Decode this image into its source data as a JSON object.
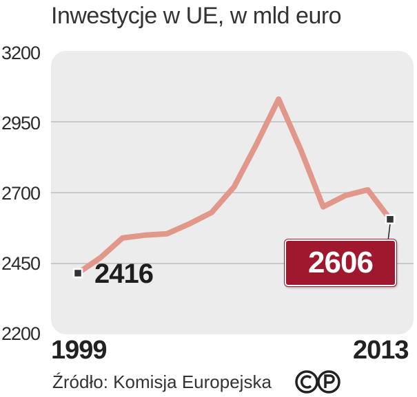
{
  "title": "Inwestycje w UE, w mld euro",
  "source": "Źródło: Komisja Europejska",
  "license_icon": "cc-p-icon",
  "colors": {
    "line": "#e1988a",
    "plot_bg": "#ececec",
    "end_badge": "#a0182e",
    "grid": "#bdbdbd"
  },
  "chart_data": {
    "type": "line",
    "title": "Inwestycje w UE, w mld euro",
    "xlabel": "",
    "ylabel": "",
    "ylim": [
      2200,
      3200
    ],
    "yticks": [
      "3200",
      "2950",
      "2700",
      "2450",
      "2200"
    ],
    "xtick_labels": [
      "1999",
      "2013"
    ],
    "grid": true,
    "x": [
      "1999",
      "2000",
      "2001",
      "2002",
      "2003",
      "2004",
      "2005",
      "2006",
      "2007",
      "2008",
      "2009",
      "2010",
      "2011",
      "2012",
      "2013"
    ],
    "series": [
      {
        "name": "",
        "values": [
          2416,
          2470,
          2540,
          2550,
          2555,
          2590,
          2630,
          2720,
          2870,
          3030,
          2850,
          2650,
          2690,
          2710,
          2606
        ]
      }
    ],
    "labels": {
      "start": "2416",
      "end": "2606"
    }
  }
}
